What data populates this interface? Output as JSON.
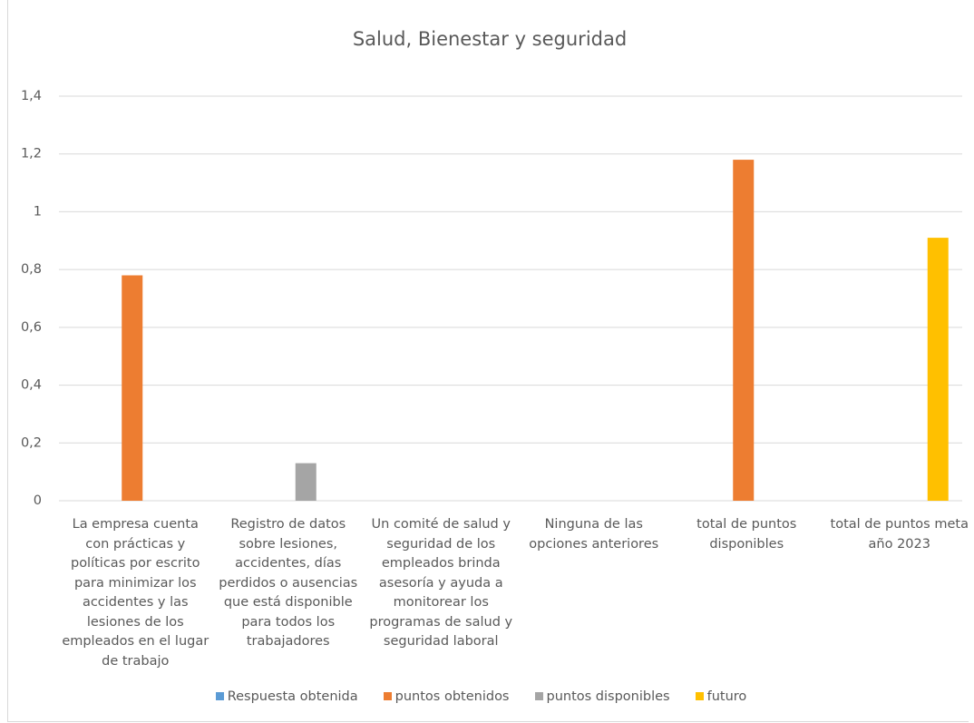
{
  "chart_data": {
    "type": "bar",
    "title": "Salud, Bienestar y seguridad",
    "categories": [
      "La empresa cuenta con prácticas y políticas por escrito para minimizar los accidentes y las lesiones de los empleados en el lugar de trabajo",
      "Registro de datos sobre lesiones, accidentes, días perdidos o ausencias que está disponible para todos los trabajadores",
      "Un comité de salud y seguridad de los empleados brinda asesoría y ayuda a monitorear los programas de salud y seguridad laboral",
      "Ninguna de las opciones anteriores",
      "total de puntos disponibles",
      "total de puntos meta año 2023"
    ],
    "series": [
      {
        "name": "Respuesta obtenida",
        "color": "#5b9bd5",
        "values": [
          0,
          0,
          0,
          0,
          0,
          0
        ]
      },
      {
        "name": "puntos obtenidos",
        "color": "#ed7d31",
        "values": [
          0.78,
          0,
          0,
          0,
          1.18,
          0
        ]
      },
      {
        "name": "puntos disponibles",
        "color": "#a5a5a5",
        "values": [
          0,
          0.13,
          0,
          0,
          0,
          0
        ]
      },
      {
        "name": "futuro",
        "color": "#ffc000",
        "values": [
          0,
          0,
          0,
          0,
          0,
          0.91
        ]
      }
    ],
    "ylim": [
      0,
      1.4
    ],
    "yticks": [
      0,
      {
        "value": 0.2,
        "label": "0,2"
      },
      {
        "value": 0.4,
        "label": "0,4"
      },
      {
        "value": 0.6,
        "label": "0,6"
      },
      {
        "value": 0.8,
        "label": "0,8"
      },
      1,
      {
        "value": 1.2,
        "label": "1,2"
      },
      {
        "value": 1.4,
        "label": "1,4"
      }
    ],
    "grid": true,
    "legend": "bottom"
  }
}
